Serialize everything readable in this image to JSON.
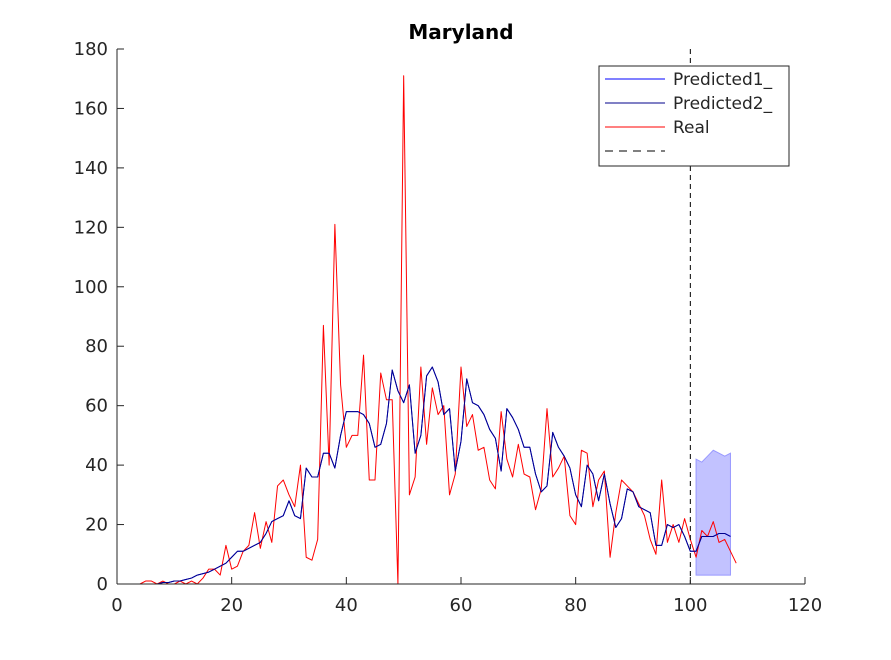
{
  "chart_data": {
    "type": "line",
    "title": "Maryland",
    "xlabel": "",
    "ylabel": "",
    "xlim": [
      0,
      120
    ],
    "ylim": [
      0,
      180
    ],
    "xticks": [
      0,
      20,
      40,
      60,
      80,
      100,
      120
    ],
    "yticks": [
      0,
      20,
      40,
      60,
      80,
      100,
      120,
      140,
      160,
      180
    ],
    "grid": false,
    "legend_position": "top-right",
    "vline_x": 100,
    "x_start": 1,
    "series": [
      {
        "name": "Predicted1_",
        "color": "#0000ff",
        "values": [
          0,
          0,
          0,
          0,
          0,
          0,
          0,
          0.5,
          0.5,
          1,
          1,
          1.5,
          2,
          3,
          3.5,
          4,
          5,
          6,
          7,
          9,
          11,
          11,
          12,
          13,
          14,
          17,
          21,
          22,
          23,
          28,
          23,
          22,
          39,
          36,
          36,
          44,
          44,
          39,
          50,
          58,
          58,
          58,
          57,
          54,
          46,
          47,
          54,
          72,
          65,
          61,
          67,
          44,
          50,
          70,
          73,
          68,
          57,
          59,
          38,
          48,
          69,
          61,
          60,
          57,
          52,
          49,
          38,
          59,
          56,
          52,
          46,
          46,
          37,
          31,
          33,
          51,
          46,
          43,
          39,
          30,
          26,
          40,
          37,
          28,
          37,
          27,
          19,
          22,
          32,
          31,
          26,
          25,
          24,
          13,
          13,
          20,
          19,
          20,
          16,
          11,
          11,
          16,
          16,
          16,
          17,
          17,
          16
        ]
      },
      {
        "name": "Predicted2_",
        "color": "#00008b",
        "values": [
          0,
          0,
          0,
          0,
          0,
          0,
          0,
          0.5,
          0.5,
          1,
          1,
          1.5,
          2,
          3,
          3.5,
          4,
          5,
          6,
          7,
          9,
          11,
          11,
          12,
          13,
          14,
          17,
          21,
          22,
          23,
          28,
          23,
          22,
          39,
          36,
          36,
          44,
          44,
          39,
          50,
          58,
          58,
          58,
          57,
          54,
          46,
          47,
          54,
          72,
          65,
          61,
          67,
          44,
          50,
          70,
          73,
          68,
          57,
          59,
          38,
          48,
          69,
          61,
          60,
          57,
          52,
          49,
          38,
          59,
          56,
          52,
          46,
          46,
          37,
          31,
          33,
          51,
          46,
          43,
          39,
          30,
          26,
          40,
          37,
          28,
          37,
          27,
          19,
          22,
          32,
          31,
          26,
          25,
          24,
          13,
          13,
          20,
          19,
          20,
          16,
          11,
          11,
          16,
          16,
          16,
          17,
          17,
          16
        ]
      },
      {
        "name": "Real",
        "color": "#ff0000",
        "values": [
          0,
          0,
          0,
          0,
          1,
          1,
          0,
          1,
          0,
          0,
          1,
          0,
          1,
          0,
          2,
          5,
          5,
          3,
          13,
          5,
          6,
          11,
          13,
          24,
          12,
          21,
          14,
          33,
          35,
          30,
          26,
          40,
          9,
          8,
          15,
          87,
          40,
          121,
          67,
          46,
          50,
          50,
          77,
          35,
          35,
          71,
          62,
          62,
          0,
          171,
          30,
          36,
          73,
          47,
          66,
          57,
          60,
          30,
          37,
          73,
          53,
          57,
          45,
          46,
          35,
          32,
          58,
          42,
          36,
          47,
          37,
          36,
          25,
          32,
          59,
          36,
          39,
          43,
          23,
          20,
          45,
          44,
          26,
          35,
          38,
          9,
          24,
          35,
          33,
          31,
          27,
          23,
          15,
          10,
          35,
          14,
          20,
          14,
          22,
          15,
          9,
          18,
          16,
          21,
          14,
          15,
          11,
          7
        ]
      },
      {
        "name": "",
        "color": "#000000",
        "dash": true,
        "values": []
      }
    ],
    "band": {
      "color": "#9999ff",
      "x": [
        101,
        102,
        103,
        104,
        105,
        106,
        107
      ],
      "upper": [
        42,
        41,
        43,
        45,
        44,
        43,
        44
      ],
      "lower": [
        3,
        3,
        3,
        3,
        3,
        3,
        3
      ]
    }
  }
}
